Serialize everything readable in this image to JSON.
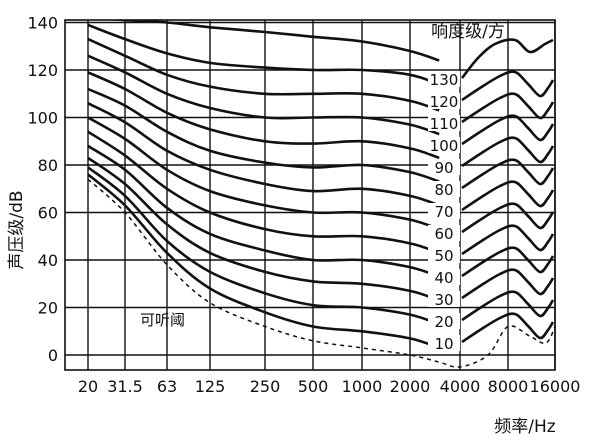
{
  "chart_data": {
    "type": "line",
    "title": "",
    "xlabel": "频率/Hz",
    "ylabel": "声压级/dB",
    "x_scale": "log",
    "grid": true,
    "x_ticks": [
      "20",
      "31.5",
      "63",
      "125",
      "250",
      "500",
      "1000",
      "2000",
      "4000",
      "8000",
      "16000"
    ],
    "x_tick_values": [
      20,
      31.5,
      63,
      125,
      250,
      500,
      1000,
      2000,
      4000,
      8000,
      16000
    ],
    "y_ticks": [
      "0",
      "20",
      "40",
      "60",
      "80",
      "100",
      "120",
      "140"
    ],
    "y_tick_values": [
      0,
      20,
      40,
      60,
      80,
      100,
      120,
      140
    ],
    "ylim": [
      -7,
      140
    ],
    "xlim": [
      20,
      16000
    ],
    "legend_title": "响度级/方",
    "legend_placement": "top-right",
    "threshold_label": "可听阈",
    "series": [
      {
        "name": "130",
        "x": [
          20,
          31.5,
          63,
          125,
          250,
          500,
          1000,
          2000,
          3000
        ],
        "y": [
          142,
          141,
          140,
          138,
          136,
          134,
          132,
          128,
          124
        ]
      },
      {
        "name": "120",
        "x": [
          20,
          31.5,
          63,
          125,
          250,
          500,
          1000,
          2000,
          3000
        ],
        "y": [
          139,
          133,
          127,
          123,
          121,
          120,
          120,
          118,
          114
        ]
      },
      {
        "name": "110",
        "x": [
          20,
          31.5,
          63,
          125,
          250,
          500,
          1000,
          2000,
          3000
        ],
        "y": [
          133,
          126,
          118,
          113,
          110,
          110,
          110,
          107,
          103
        ]
      },
      {
        "name": "100",
        "x": [
          20,
          31.5,
          63,
          125,
          250,
          500,
          1000,
          2000,
          3000
        ],
        "y": [
          126,
          119,
          110,
          104,
          100,
          100,
          100,
          97,
          93
        ]
      },
      {
        "name": "90",
        "x": [
          20,
          31.5,
          63,
          125,
          250,
          500,
          1000,
          2000,
          3000
        ],
        "y": [
          119,
          112,
          102,
          95,
          90,
          89,
          90,
          87,
          83
        ]
      },
      {
        "name": "80",
        "x": [
          20,
          31.5,
          63,
          125,
          250,
          500,
          1000,
          2000,
          3000
        ],
        "y": [
          112,
          105,
          94,
          86,
          81,
          79,
          80,
          77,
          73
        ]
      },
      {
        "name": "70",
        "x": [
          20,
          31.5,
          63,
          125,
          250,
          500,
          1000,
          2000,
          3000
        ],
        "y": [
          106,
          98,
          86,
          78,
          72,
          69,
          70,
          67,
          63
        ]
      },
      {
        "name": "60",
        "x": [
          20,
          31.5,
          63,
          125,
          250,
          500,
          1000,
          2000,
          3000
        ],
        "y": [
          100,
          91,
          78,
          69,
          63,
          60,
          60,
          57,
          53
        ]
      },
      {
        "name": "50",
        "x": [
          20,
          31.5,
          63,
          125,
          250,
          500,
          1000,
          2000,
          3000
        ],
        "y": [
          94,
          84,
          70,
          60,
          53,
          50,
          50,
          47,
          43
        ]
      },
      {
        "name": "40",
        "x": [
          20,
          31.5,
          63,
          125,
          250,
          500,
          1000,
          2000,
          3000
        ],
        "y": [
          88,
          78,
          62,
          51,
          44,
          40,
          40,
          37,
          33
        ]
      },
      {
        "name": "30",
        "x": [
          20,
          31.5,
          63,
          125,
          250,
          500,
          1000,
          2000,
          3000
        ],
        "y": [
          83,
          72,
          55,
          43,
          35,
          31,
          30,
          27,
          23
        ]
      },
      {
        "name": "20",
        "x": [
          20,
          31.5,
          63,
          125,
          250,
          500,
          1000,
          2000,
          3000
        ],
        "y": [
          79,
          67,
          48,
          35,
          26,
          21,
          20,
          17,
          13
        ]
      },
      {
        "name": "10",
        "x": [
          20,
          31.5,
          63,
          125,
          250,
          500,
          1000,
          2000,
          3000
        ],
        "y": [
          76,
          63,
          43,
          28,
          18,
          12,
          10,
          7,
          3
        ]
      },
      {
        "name": "可听阈",
        "dashed": true,
        "x": [
          20,
          31.5,
          63,
          125,
          250,
          500,
          1000,
          2000,
          3000,
          4000,
          6000,
          8000,
          11000,
          14000,
          16000
        ],
        "y": [
          74,
          60,
          38,
          22,
          12,
          6,
          3,
          0,
          -3,
          -5,
          0,
          12,
          8,
          5,
          12
        ]
      }
    ],
    "phon_labels": [
      "130",
      "120",
      "110",
      "100",
      "90",
      "80",
      "70",
      "60",
      "50",
      "40",
      "30",
      "20",
      "10"
    ]
  },
  "colors": {
    "background": "#ffffff",
    "line": "#111111",
    "grid": "#111111"
  }
}
